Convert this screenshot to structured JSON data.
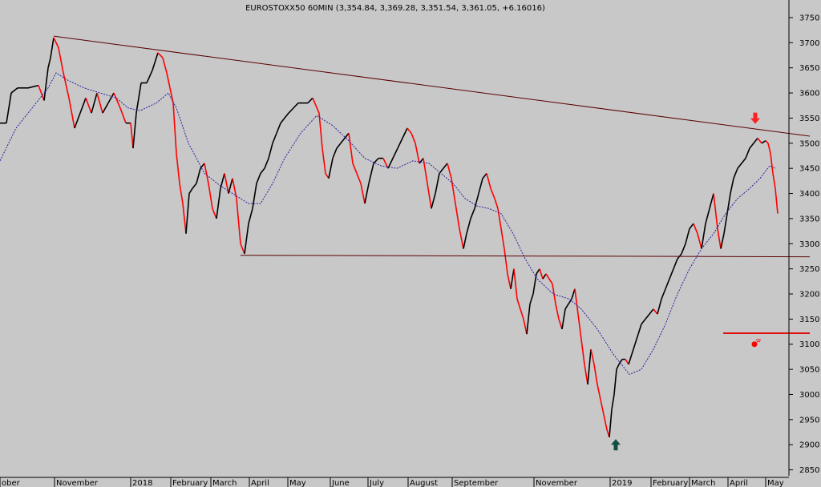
{
  "chart_data": {
    "type": "line",
    "title": "EUROSTOXX50 60MIN (3,354.84, 3,369.28, 3,351.54, 3,361.05, +6.16016)",
    "xlabel": "",
    "ylabel": "",
    "ylim": [
      2835,
      3785
    ],
    "grid": false,
    "y_ticks": [
      2850,
      2900,
      2950,
      3000,
      3050,
      3100,
      3150,
      3200,
      3250,
      3300,
      3350,
      3400,
      3450,
      3500,
      3550,
      3600,
      3650,
      3700,
      3750
    ],
    "x_ticks": [
      {
        "label": "ober",
        "t": 0
      },
      {
        "label": "November",
        "t": 68
      },
      {
        "label": "2018",
        "t": 163
      },
      {
        "label": "February",
        "t": 213
      },
      {
        "label": "March",
        "t": 263
      },
      {
        "label": "April",
        "t": 311
      },
      {
        "label": "May",
        "t": 359
      },
      {
        "label": "June",
        "t": 412
      },
      {
        "label": "July",
        "t": 459
      },
      {
        "label": "August",
        "t": 509
      },
      {
        "label": "September",
        "t": 564
      },
      {
        "label": "November",
        "t": 666
      },
      {
        "label": "2019",
        "t": 761
      },
      {
        "label": "February",
        "t": 812
      },
      {
        "label": "March",
        "t": 860
      },
      {
        "label": "April",
        "t": 908
      },
      {
        "label": "May",
        "t": 955
      }
    ],
    "price_series": {
      "name": "",
      "points": [
        [
          0,
          3540
        ],
        [
          8,
          3540
        ],
        [
          14,
          3600
        ],
        [
          22,
          3610
        ],
        [
          35,
          3610
        ],
        [
          48,
          3615
        ],
        [
          55,
          3585
        ],
        [
          60,
          3650
        ],
        [
          63,
          3670
        ],
        [
          67,
          3710
        ],
        [
          73,
          3690
        ],
        [
          79,
          3640
        ],
        [
          86,
          3590
        ],
        [
          93,
          3530
        ],
        [
          100,
          3560
        ],
        [
          107,
          3590
        ],
        [
          114,
          3560
        ],
        [
          121,
          3600
        ],
        [
          128,
          3560
        ],
        [
          135,
          3580
        ],
        [
          142,
          3600
        ],
        [
          150,
          3570
        ],
        [
          157,
          3540
        ],
        [
          163,
          3540
        ],
        [
          166,
          3490
        ],
        [
          170,
          3560
        ],
        [
          176,
          3620
        ],
        [
          183,
          3620
        ],
        [
          190,
          3645
        ],
        [
          197,
          3680
        ],
        [
          203,
          3670
        ],
        [
          208,
          3640
        ],
        [
          212,
          3610
        ],
        [
          216,
          3580
        ],
        [
          220,
          3480
        ],
        [
          224,
          3420
        ],
        [
          228,
          3380
        ],
        [
          232,
          3320
        ],
        [
          236,
          3400
        ],
        [
          240,
          3410
        ],
        [
          245,
          3420
        ],
        [
          250,
          3450
        ],
        [
          255,
          3460
        ],
        [
          260,
          3420
        ],
        [
          265,
          3370
        ],
        [
          270,
          3350
        ],
        [
          275,
          3410
        ],
        [
          280,
          3440
        ],
        [
          285,
          3400
        ],
        [
          290,
          3430
        ],
        [
          295,
          3390
        ],
        [
          300,
          3300
        ],
        [
          305,
          3280
        ],
        [
          310,
          3340
        ],
        [
          315,
          3370
        ],
        [
          320,
          3420
        ],
        [
          325,
          3440
        ],
        [
          330,
          3450
        ],
        [
          335,
          3470
        ],
        [
          340,
          3500
        ],
        [
          345,
          3520
        ],
        [
          350,
          3540
        ],
        [
          355,
          3550
        ],
        [
          360,
          3560
        ],
        [
          366,
          3570
        ],
        [
          372,
          3580
        ],
        [
          378,
          3580
        ],
        [
          384,
          3580
        ],
        [
          390,
          3590
        ],
        [
          394,
          3575
        ],
        [
          398,
          3560
        ],
        [
          402,
          3490
        ],
        [
          406,
          3440
        ],
        [
          410,
          3430
        ],
        [
          415,
          3470
        ],
        [
          420,
          3490
        ],
        [
          425,
          3500
        ],
        [
          430,
          3510
        ],
        [
          435,
          3520
        ],
        [
          440,
          3460
        ],
        [
          445,
          3440
        ],
        [
          450,
          3420
        ],
        [
          455,
          3380
        ],
        [
          460,
          3420
        ],
        [
          466,
          3460
        ],
        [
          472,
          3470
        ],
        [
          478,
          3470
        ],
        [
          484,
          3450
        ],
        [
          490,
          3470
        ],
        [
          496,
          3490
        ],
        [
          502,
          3510
        ],
        [
          508,
          3530
        ],
        [
          513,
          3520
        ],
        [
          518,
          3500
        ],
        [
          523,
          3460
        ],
        [
          528,
          3470
        ],
        [
          533,
          3420
        ],
        [
          538,
          3370
        ],
        [
          543,
          3400
        ],
        [
          548,
          3440
        ],
        [
          553,
          3450
        ],
        [
          558,
          3460
        ],
        [
          563,
          3430
        ],
        [
          568,
          3380
        ],
        [
          573,
          3330
        ],
        [
          578,
          3290
        ],
        [
          582,
          3320
        ],
        [
          587,
          3350
        ],
        [
          592,
          3370
        ],
        [
          597,
          3400
        ],
        [
          602,
          3430
        ],
        [
          607,
          3440
        ],
        [
          612,
          3410
        ],
        [
          617,
          3390
        ],
        [
          621,
          3370
        ],
        [
          625,
          3330
        ],
        [
          629,
          3290
        ],
        [
          633,
          3240
        ],
        [
          637,
          3210
        ],
        [
          641,
          3250
        ],
        [
          645,
          3190
        ],
        [
          649,
          3170
        ],
        [
          653,
          3150
        ],
        [
          657,
          3120
        ],
        [
          661,
          3180
        ],
        [
          665,
          3200
        ],
        [
          669,
          3240
        ],
        [
          673,
          3250
        ],
        [
          677,
          3230
        ],
        [
          681,
          3240
        ],
        [
          685,
          3230
        ],
        [
          689,
          3220
        ],
        [
          693,
          3180
        ],
        [
          697,
          3150
        ],
        [
          701,
          3130
        ],
        [
          705,
          3170
        ],
        [
          709,
          3180
        ],
        [
          713,
          3190
        ],
        [
          717,
          3210
        ],
        [
          721,
          3160
        ],
        [
          725,
          3110
        ],
        [
          729,
          3060
        ],
        [
          733,
          3020
        ],
        [
          737,
          3090
        ],
        [
          741,
          3060
        ],
        [
          745,
          3020
        ],
        [
          749,
          2990
        ],
        [
          753,
          2960
        ],
        [
          757,
          2930
        ],
        [
          760,
          2915
        ],
        [
          763,
          2970
        ],
        [
          766,
          3000
        ],
        [
          769,
          3050
        ],
        [
          772,
          3060
        ],
        [
          776,
          3070
        ],
        [
          780,
          3070
        ],
        [
          784,
          3060
        ],
        [
          788,
          3080
        ],
        [
          792,
          3100
        ],
        [
          796,
          3120
        ],
        [
          800,
          3140
        ],
        [
          805,
          3150
        ],
        [
          810,
          3160
        ],
        [
          815,
          3170
        ],
        [
          820,
          3160
        ],
        [
          825,
          3190
        ],
        [
          830,
          3210
        ],
        [
          835,
          3230
        ],
        [
          840,
          3250
        ],
        [
          845,
          3270
        ],
        [
          850,
          3280
        ],
        [
          855,
          3300
        ],
        [
          860,
          3330
        ],
        [
          865,
          3340
        ],
        [
          870,
          3320
        ],
        [
          875,
          3290
        ],
        [
          880,
          3340
        ],
        [
          885,
          3370
        ],
        [
          890,
          3400
        ],
        [
          895,
          3330
        ],
        [
          899,
          3290
        ],
        [
          903,
          3320
        ],
        [
          907,
          3360
        ],
        [
          911,
          3400
        ],
        [
          915,
          3430
        ],
        [
          920,
          3450
        ],
        [
          925,
          3460
        ],
        [
          930,
          3470
        ],
        [
          935,
          3490
        ],
        [
          940,
          3500
        ],
        [
          945,
          3510
        ],
        [
          950,
          3500
        ],
        [
          955,
          3505
        ],
        [
          958,
          3500
        ],
        [
          961,
          3480
        ],
        [
          964,
          3440
        ],
        [
          967,
          3410
        ],
        [
          970,
          3360
        ]
      ]
    },
    "ma_series": {
      "name": "",
      "points": [
        [
          0,
          3465
        ],
        [
          20,
          3530
        ],
        [
          40,
          3570
        ],
        [
          60,
          3610
        ],
        [
          70,
          3640
        ],
        [
          85,
          3625
        ],
        [
          105,
          3610
        ],
        [
          125,
          3600
        ],
        [
          145,
          3590
        ],
        [
          160,
          3570
        ],
        [
          175,
          3565
        ],
        [
          195,
          3580
        ],
        [
          210,
          3600
        ],
        [
          220,
          3570
        ],
        [
          235,
          3500
        ],
        [
          255,
          3440
        ],
        [
          275,
          3415
        ],
        [
          295,
          3395
        ],
        [
          310,
          3380
        ],
        [
          325,
          3380
        ],
        [
          340,
          3420
        ],
        [
          355,
          3470
        ],
        [
          375,
          3520
        ],
        [
          395,
          3555
        ],
        [
          415,
          3535
        ],
        [
          435,
          3505
        ],
        [
          455,
          3470
        ],
        [
          475,
          3455
        ],
        [
          495,
          3450
        ],
        [
          515,
          3465
        ],
        [
          535,
          3460
        ],
        [
          550,
          3440
        ],
        [
          565,
          3420
        ],
        [
          580,
          3390
        ],
        [
          595,
          3375
        ],
        [
          610,
          3370
        ],
        [
          625,
          3360
        ],
        [
          640,
          3320
        ],
        [
          655,
          3270
        ],
        [
          670,
          3230
        ],
        [
          690,
          3200
        ],
        [
          710,
          3190
        ],
        [
          725,
          3170
        ],
        [
          745,
          3130
        ],
        [
          765,
          3080
        ],
        [
          785,
          3040
        ],
        [
          800,
          3050
        ],
        [
          815,
          3090
        ],
        [
          830,
          3140
        ],
        [
          845,
          3200
        ],
        [
          860,
          3250
        ],
        [
          875,
          3290
        ],
        [
          890,
          3320
        ],
        [
          905,
          3360
        ],
        [
          920,
          3390
        ],
        [
          935,
          3410
        ],
        [
          948,
          3430
        ],
        [
          960,
          3455
        ],
        [
          968,
          3450
        ]
      ]
    },
    "trendlines": [
      {
        "points": [
          [
            67,
            3713
          ],
          [
            1010,
            3514
          ]
        ]
      },
      {
        "points": [
          [
            300,
            3277
          ],
          [
            1010,
            3274
          ]
        ]
      },
      {
        "points": [
          [
            902,
            3122
          ],
          [
            1010,
            3122
          ]
        ]
      }
    ],
    "annotations": [
      {
        "type": "arrow-down",
        "t": 942,
        "y": 3545
      },
      {
        "type": "arrow-up",
        "t": 768,
        "y": 2900
      },
      {
        "type": "marker",
        "t": 941,
        "y": 3100
      }
    ],
    "colors": {
      "background": "#c8c8c8",
      "up": "#000000",
      "down": "#ff0000",
      "moving_average": "#2a1fa0",
      "trendline": "#5b0000",
      "horizontal_line": "#e01010",
      "arrow_down": "#ff2020",
      "arrow_up": "#0f4f3f"
    }
  }
}
